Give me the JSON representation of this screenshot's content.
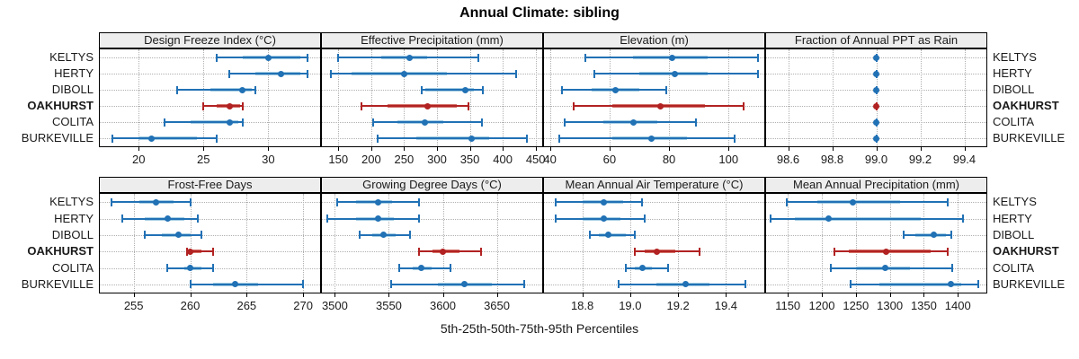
{
  "title": "Annual Climate: sibling",
  "caption": "5th-25th-50th-75th-95th Percentiles",
  "stations": [
    "KELTYS",
    "HERTY",
    "DIBOLL",
    "OAKHURST",
    "COLITA",
    "BURKEVILLE"
  ],
  "highlight_station": "OAKHURST",
  "colors": {
    "blue_dark": "#2171B5",
    "blue_light": "#A6CEE3",
    "red_dark": "#B22222",
    "red_light": "#D4736A",
    "grid": "#B0B0B0",
    "strip_bg": "#EDEDED",
    "border": "#000000"
  },
  "percentiles_shown": [
    "5th",
    "25th",
    "50th",
    "75th",
    "95th"
  ],
  "chart_data": [
    {
      "type": "interval-dotplot",
      "title": "Design Freeze Index (°C)",
      "xlim": [
        17,
        34
      ],
      "ticks": [
        {
          "value": 20,
          "label": "20"
        },
        {
          "value": 25,
          "label": "25"
        },
        {
          "value": 30,
          "label": "30"
        }
      ],
      "series": [
        {
          "name": "KELTYS",
          "values": [
            26,
            28,
            30,
            32.5,
            33
          ]
        },
        {
          "name": "HERTY",
          "values": [
            27,
            29,
            31,
            32.5,
            33
          ]
        },
        {
          "name": "DIBOLL",
          "values": [
            23,
            25.5,
            28,
            28.7,
            29
          ]
        },
        {
          "name": "OAKHURST",
          "values": [
            25,
            26,
            27,
            27.8,
            28
          ]
        },
        {
          "name": "COLITA",
          "values": [
            22,
            24,
            27,
            27.7,
            28
          ]
        },
        {
          "name": "BURKEVILLE",
          "values": [
            18,
            20,
            21,
            24.5,
            26
          ]
        }
      ]
    },
    {
      "type": "interval-dotplot",
      "title": "Effective Precipitation (mm)",
      "xlim": [
        125,
        460
      ],
      "ticks": [
        {
          "value": 150,
          "label": "150"
        },
        {
          "value": 200,
          "label": "200"
        },
        {
          "value": 250,
          "label": "250"
        },
        {
          "value": 300,
          "label": "300"
        },
        {
          "value": 350,
          "label": "350"
        },
        {
          "value": 400,
          "label": "400"
        },
        {
          "value": 450,
          "label": "450"
        }
      ],
      "series": [
        {
          "name": "KELTYS",
          "values": [
            150,
            215,
            258,
            285,
            363
          ]
        },
        {
          "name": "HERTY",
          "values": [
            138,
            170,
            250,
            315,
            420
          ]
        },
        {
          "name": "DIBOLL",
          "values": [
            277,
            282,
            343,
            356,
            370
          ]
        },
        {
          "name": "OAKHURST",
          "values": [
            185,
            225,
            285,
            330,
            348
          ]
        },
        {
          "name": "COLITA",
          "values": [
            203,
            240,
            282,
            310,
            368
          ]
        },
        {
          "name": "BURKEVILLE",
          "values": [
            210,
            268,
            352,
            380,
            437
          ]
        }
      ]
    },
    {
      "type": "interval-dotplot",
      "title": "Elevation (m)",
      "xlim": [
        38,
        112
      ],
      "ticks": [
        {
          "value": 40,
          "label": "40"
        },
        {
          "value": 60,
          "label": "60"
        },
        {
          "value": 80,
          "label": "80"
        },
        {
          "value": 100,
          "label": "100"
        }
      ],
      "series": [
        {
          "name": "KELTYS",
          "values": [
            52,
            68,
            81,
            93,
            110
          ]
        },
        {
          "name": "HERTY",
          "values": [
            55,
            70,
            82,
            93,
            110
          ]
        },
        {
          "name": "DIBOLL",
          "values": [
            44,
            54,
            62,
            70,
            79
          ]
        },
        {
          "name": "OAKHURST",
          "values": [
            48,
            61,
            77,
            92,
            105
          ]
        },
        {
          "name": "COLITA",
          "values": [
            45,
            58,
            68,
            76,
            89
          ]
        },
        {
          "name": "BURKEVILLE",
          "values": [
            43,
            61,
            74,
            86,
            102
          ]
        }
      ]
    },
    {
      "type": "interval-dotplot",
      "title": "Fraction of Annual PPT as Rain",
      "xlim": [
        98.5,
        99.5
      ],
      "ticks": [
        {
          "value": 98.6,
          "label": "98.6"
        },
        {
          "value": 98.8,
          "label": "98.8"
        },
        {
          "value": 99.0,
          "label": "99.0"
        },
        {
          "value": 99.2,
          "label": "99.2"
        },
        {
          "value": 99.4,
          "label": "99.4"
        }
      ],
      "series": [
        {
          "name": "KELTYS",
          "values": [
            99,
            99,
            99,
            99,
            99
          ]
        },
        {
          "name": "HERTY",
          "values": [
            99,
            99,
            99,
            99,
            99
          ]
        },
        {
          "name": "DIBOLL",
          "values": [
            99,
            99,
            99,
            99,
            99
          ]
        },
        {
          "name": "OAKHURST",
          "values": [
            99,
            99,
            99,
            99,
            99
          ]
        },
        {
          "name": "COLITA",
          "values": [
            99,
            99,
            99,
            99,
            99
          ]
        },
        {
          "name": "BURKEVILLE",
          "values": [
            99,
            99,
            99,
            99,
            99
          ]
        }
      ]
    },
    {
      "type": "interval-dotplot",
      "title": "Frost-Free Days",
      "xlim": [
        252,
        271.5
      ],
      "ticks": [
        {
          "value": 255,
          "label": "255"
        },
        {
          "value": 260,
          "label": "260"
        },
        {
          "value": 265,
          "label": "265"
        },
        {
          "value": 270,
          "label": "270"
        }
      ],
      "series": [
        {
          "name": "KELTYS",
          "values": [
            253,
            255.5,
            257,
            258.5,
            260
          ]
        },
        {
          "name": "HERTY",
          "values": [
            254,
            256,
            258,
            259.5,
            260.7
          ]
        },
        {
          "name": "DIBOLL",
          "values": [
            256,
            257.5,
            259,
            260,
            261
          ]
        },
        {
          "name": "OAKHURST",
          "values": [
            259.7,
            259.9,
            260,
            261,
            262
          ]
        },
        {
          "name": "COLITA",
          "values": [
            258,
            259.5,
            260,
            261,
            262
          ]
        },
        {
          "name": "BURKEVILLE",
          "values": [
            260,
            262,
            264,
            266,
            270
          ]
        }
      ]
    },
    {
      "type": "interval-dotplot",
      "title": "Growing Degree Days (°C)",
      "xlim": [
        3488,
        3692
      ],
      "ticks": [
        {
          "value": 3500,
          "label": "3500"
        },
        {
          "value": 3550,
          "label": "3550"
        },
        {
          "value": 3600,
          "label": "3600"
        },
        {
          "value": 3650,
          "label": "3650"
        }
      ],
      "series": [
        {
          "name": "KELTYS",
          "values": [
            3502,
            3520,
            3540,
            3553,
            3578
          ]
        },
        {
          "name": "HERTY",
          "values": [
            3493,
            3520,
            3540,
            3555,
            3578
          ]
        },
        {
          "name": "DIBOLL",
          "values": [
            3523,
            3535,
            3545,
            3556,
            3570
          ]
        },
        {
          "name": "OAKHURST",
          "values": [
            3578,
            3590,
            3600,
            3615,
            3635
          ]
        },
        {
          "name": "COLITA",
          "values": [
            3560,
            3572,
            3580,
            3590,
            3607
          ]
        },
        {
          "name": "BURKEVILLE",
          "values": [
            3552,
            3595,
            3620,
            3645,
            3675
          ]
        }
      ]
    },
    {
      "type": "interval-dotplot",
      "title": "Mean Annual Air Temperature (°C)",
      "xlim": [
        18.64,
        19.56
      ],
      "ticks": [
        {
          "value": 18.8,
          "label": "18.8"
        },
        {
          "value": 19.0,
          "label": "19.0"
        },
        {
          "value": 19.2,
          "label": "19.2"
        },
        {
          "value": 19.4,
          "label": "19.4"
        }
      ],
      "series": [
        {
          "name": "KELTYS",
          "values": [
            18.69,
            18.8,
            18.89,
            18.97,
            19.05
          ]
        },
        {
          "name": "HERTY",
          "values": [
            18.69,
            18.8,
            18.89,
            18.96,
            19.06
          ]
        },
        {
          "name": "DIBOLL",
          "values": [
            18.83,
            18.87,
            18.91,
            18.98,
            19.02
          ]
        },
        {
          "name": "OAKHURST",
          "values": [
            19.02,
            19.06,
            19.11,
            19.19,
            19.29
          ]
        },
        {
          "name": "COLITA",
          "values": [
            18.98,
            19.02,
            19.05,
            19.09,
            19.16
          ]
        },
        {
          "name": "BURKEVILLE",
          "values": [
            18.95,
            19.11,
            19.23,
            19.33,
            19.48
          ]
        }
      ]
    },
    {
      "type": "interval-dotplot",
      "title": "Mean Annual Precipitation (mm)",
      "xlim": [
        1118,
        1442
      ],
      "ticks": [
        {
          "value": 1150,
          "label": "1150"
        },
        {
          "value": 1200,
          "label": "1200"
        },
        {
          "value": 1250,
          "label": "1250"
        },
        {
          "value": 1300,
          "label": "1300"
        },
        {
          "value": 1350,
          "label": "1350"
        },
        {
          "value": 1400,
          "label": "1400"
        }
      ],
      "series": [
        {
          "name": "KELTYS",
          "values": [
            1148,
            1193,
            1245,
            1315,
            1385
          ]
        },
        {
          "name": "HERTY",
          "values": [
            1125,
            1160,
            1210,
            1345,
            1408
          ]
        },
        {
          "name": "DIBOLL",
          "values": [
            1320,
            1338,
            1365,
            1383,
            1390
          ]
        },
        {
          "name": "OAKHURST",
          "values": [
            1218,
            1240,
            1295,
            1360,
            1385
          ]
        },
        {
          "name": "COLITA",
          "values": [
            1213,
            1250,
            1293,
            1330,
            1392
          ]
        },
        {
          "name": "BURKEVILLE",
          "values": [
            1242,
            1285,
            1390,
            1405,
            1430
          ]
        }
      ]
    }
  ]
}
